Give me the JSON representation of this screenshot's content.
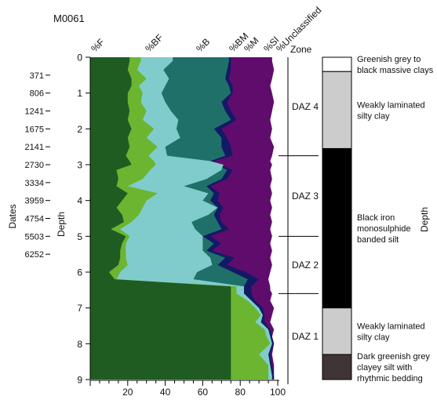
{
  "chart_data": {
    "type": "area",
    "title": "M0061",
    "orientation": "vertical-depth",
    "x_axis": {
      "label": "",
      "ticks": [
        "20",
        "40",
        "60",
        "80",
        "100"
      ],
      "range": [
        0,
        100
      ]
    },
    "y_axis": {
      "label": "Depth",
      "ticks": [
        "0",
        "1",
        "2",
        "3",
        "4",
        "5",
        "6",
        "7",
        "8",
        "9"
      ],
      "range": [
        0,
        9
      ],
      "inverted": true
    },
    "column_headers": [
      "%F",
      "%BF",
      "%B",
      "%BM",
      "%M",
      "%Sl",
      "%Unclassified",
      "Zone"
    ],
    "depth_samples": [
      0.1,
      0.35,
      0.6,
      0.8,
      1.0,
      1.25,
      1.5,
      1.75,
      2.0,
      2.25,
      2.5,
      2.75,
      2.9,
      3.0,
      3.15,
      3.4,
      3.6,
      3.8,
      4.0,
      4.2,
      4.4,
      4.6,
      4.8,
      5.0,
      5.2,
      5.4,
      5.6,
      5.8,
      6.0,
      6.2,
      6.4,
      6.5,
      6.6,
      6.8,
      7.0,
      7.2,
      7.4,
      7.6,
      7.8,
      8.0,
      8.3,
      8.6,
      8.9
    ],
    "series": [
      {
        "name": "%F",
        "color": "#1f5c22",
        "cumulative": [
          21,
          20,
          22,
          22,
          20,
          20,
          21,
          20,
          22,
          20,
          21,
          19,
          21,
          22,
          14,
          15,
          14,
          20,
          17,
          14,
          17,
          18,
          11,
          19,
          17,
          16,
          16,
          15,
          10,
          13,
          75,
          75,
          75,
          75,
          75,
          75,
          75,
          75,
          75,
          75,
          75,
          75,
          75
        ]
      },
      {
        "name": "%BF",
        "color": "#6bb531",
        "cumulative": [
          27,
          25,
          30,
          26,
          28,
          27,
          30,
          28,
          34,
          30,
          36,
          31,
          34,
          35,
          32,
          28,
          20,
          36,
          30,
          28,
          26,
          22,
          16,
          21,
          19,
          19,
          19,
          20,
          16,
          14,
          78,
          78,
          78,
          84,
          88,
          91,
          88,
          93,
          94,
          96,
          90,
          95,
          95
        ]
      },
      {
        "name": "%B",
        "color": "#80cccc",
        "cumulative": [
          44,
          39,
          42,
          40,
          38,
          40,
          43,
          47,
          46,
          48,
          40,
          41,
          64,
          71,
          70,
          62,
          50,
          63,
          60,
          68,
          63,
          54,
          56,
          60,
          60,
          60,
          64,
          65,
          57,
          55,
          82,
          82,
          82,
          86,
          90,
          92,
          91,
          95,
          96,
          97,
          95,
          96,
          97
        ]
      },
      {
        "name": "%BM",
        "color": "#20706a",
        "cumulative": [
          74,
          73,
          72,
          74,
          75,
          70,
          72,
          75,
          66,
          70,
          70,
          72,
          64,
          67,
          73,
          70,
          62,
          66,
          64,
          68,
          66,
          68,
          70,
          60,
          66,
          62,
          72,
          68,
          76,
          84,
          82,
          82,
          82,
          86,
          90,
          92,
          91,
          95,
          96,
          97,
          95,
          96,
          97
        ]
      },
      {
        "name": "%M",
        "color": "#121a66",
        "cumulative": [
          75,
          75,
          74,
          76,
          76,
          73,
          75,
          78,
          70,
          73,
          75,
          76,
          66,
          69,
          76,
          73,
          64,
          69,
          68,
          71,
          69,
          70,
          74,
          64,
          70,
          65,
          77,
          73,
          83,
          90,
          86,
          86,
          86,
          88,
          92,
          93,
          93,
          96,
          97,
          98,
          96,
          97,
          98
        ]
      },
      {
        "name": "%Sl",
        "color": "#600c6c",
        "cumulative": [
          97,
          98,
          97,
          96,
          97,
          98,
          97,
          96,
          97,
          96,
          98,
          97,
          96,
          97,
          96,
          97,
          96,
          97,
          96,
          97,
          96,
          97,
          96,
          97,
          96,
          97,
          96,
          97,
          96,
          95,
          96,
          96,
          97,
          96,
          98,
          97,
          96,
          98,
          97,
          98,
          97,
          98,
          98
        ]
      },
      {
        "name": "%Unclassified",
        "color": "#ffffff",
        "cumulative": [
          100,
          100,
          100,
          100,
          100,
          100,
          100,
          100,
          100,
          100,
          100,
          100,
          100,
          100,
          100,
          100,
          100,
          100,
          100,
          100,
          100,
          100,
          100,
          100,
          100,
          100,
          100,
          100,
          100,
          100,
          100,
          100,
          100,
          100,
          100,
          100,
          100,
          100,
          100,
          100,
          100,
          100,
          100
        ]
      }
    ],
    "zones": [
      {
        "label": "DAZ 4",
        "top": 0.0,
        "bottom": 2.75
      },
      {
        "label": "DAZ 3",
        "top": 2.75,
        "bottom": 5.0
      },
      {
        "label": "DAZ 2",
        "top": 5.0,
        "bottom": 6.6
      },
      {
        "label": "DAZ 1",
        "top": 6.6,
        "bottom": 9.0
      }
    ],
    "dates": {
      "label": "Dates",
      "items": [
        {
          "value": "371",
          "depth": 0.5
        },
        {
          "value": "806",
          "depth": 1.0
        },
        {
          "value": "1241",
          "depth": 1.5
        },
        {
          "value": "1675",
          "depth": 2.0
        },
        {
          "value": "2141",
          "depth": 2.5
        },
        {
          "value": "2730",
          "depth": 3.0
        },
        {
          "value": "3334",
          "depth": 3.5
        },
        {
          "value": "3959",
          "depth": 4.0
        },
        {
          "value": "4754",
          "depth": 4.5
        },
        {
          "value": "5503",
          "depth": 5.0
        },
        {
          "value": "6252",
          "depth": 5.5
        }
      ]
    },
    "lithology": {
      "label": "Depth",
      "units": [
        {
          "top": 0.0,
          "bottom": 0.4,
          "fill": "#ffffff",
          "description": [
            "Greenish grey to",
            "black massive clays"
          ]
        },
        {
          "top": 0.4,
          "bottom": 2.55,
          "fill": "#cccccc",
          "description": [
            "Weakly laminated",
            "silty clay"
          ]
        },
        {
          "top": 2.55,
          "bottom": 7.0,
          "fill": "#000000",
          "description": [
            "Black iron",
            "monosulphide",
            "banded silt"
          ]
        },
        {
          "top": 7.0,
          "bottom": 8.3,
          "fill": "#cccccc",
          "description": [
            "Weakly laminated",
            "silty clay"
          ]
        },
        {
          "top": 8.3,
          "bottom": 9.0,
          "fill": "#3f3536",
          "description": [
            "Dark greenish grey",
            "clayey silt with",
            "rhythmic bedding"
          ]
        }
      ]
    }
  }
}
